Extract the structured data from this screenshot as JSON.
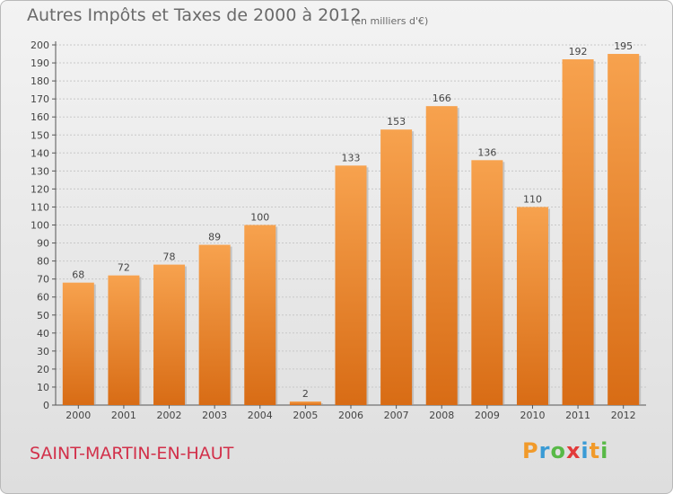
{
  "chart_data": {
    "type": "bar",
    "title": "Autres Impôts et Taxes de 2000 à 2012",
    "subtitle": "(en milliers d'€)",
    "categories": [
      "2000",
      "2001",
      "2002",
      "2003",
      "2004",
      "2005",
      "2006",
      "2007",
      "2008",
      "2009",
      "2010",
      "2011",
      "2012"
    ],
    "values": [
      68,
      72,
      78,
      89,
      100,
      2,
      133,
      153,
      166,
      136,
      110,
      192,
      195
    ],
    "ylim": [
      0,
      200
    ],
    "ytick_step": 10,
    "grid": true,
    "xlabel": "",
    "ylabel": "",
    "bar_color_top": "#f7a24e",
    "bar_color_bottom": "#d86c15"
  },
  "footer": {
    "location": "SAINT-MARTIN-EN-HAUT",
    "logo_text": "Proxiti",
    "logo_colors": [
      "#f19a2a",
      "#3a9bd5",
      "#58b947",
      "#e23a3a",
      "#3a9bd5",
      "#f19a2a",
      "#58b947"
    ]
  }
}
